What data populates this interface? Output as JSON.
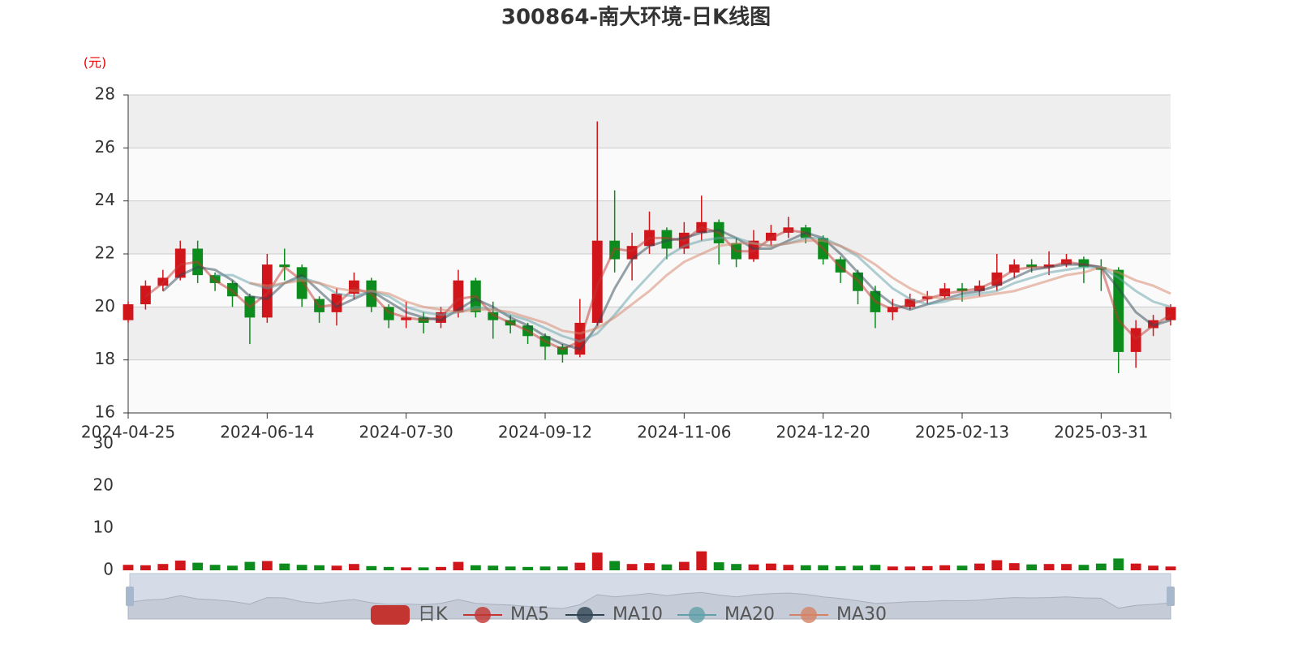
{
  "chart_data": {
    "type": "candlestick",
    "title": "300864-南大环境-日K线图",
    "y_label": "(元)",
    "categories": [
      "2024-04-25",
      null,
      null,
      null,
      null,
      null,
      null,
      null,
      "2024-06-14",
      null,
      null,
      null,
      null,
      null,
      null,
      null,
      "2024-07-30",
      null,
      null,
      null,
      null,
      null,
      null,
      null,
      "2024-09-12",
      null,
      null,
      null,
      null,
      null,
      null,
      null,
      "2024-11-06",
      null,
      null,
      null,
      null,
      null,
      null,
      null,
      "2024-12-20",
      null,
      null,
      null,
      null,
      null,
      null,
      null,
      "2025-02-13",
      null,
      null,
      null,
      null,
      null,
      null,
      null,
      "2025-03-31",
      null,
      null,
      null,
      null
    ],
    "ylim": [
      16,
      28
    ],
    "yticks": [
      16,
      18,
      20,
      22,
      24,
      26,
      28
    ],
    "up_color": "#d0151b",
    "down_color": "#0b8c1c",
    "series": [
      {
        "name": "日K",
        "type": "candlestick",
        "color": "#c23531",
        "open": [
          19.5,
          20.1,
          20.8,
          21.1,
          22.2,
          21.2,
          20.9,
          20.4,
          19.6,
          21.6,
          21.5,
          20.3,
          19.8,
          20.5,
          21.0,
          20.0,
          19.5,
          19.6,
          19.4,
          19.8,
          21.0,
          19.8,
          19.5,
          19.3,
          18.9,
          18.5,
          18.2,
          19.4,
          22.5,
          21.8,
          22.3,
          22.9,
          22.2,
          22.8,
          23.2,
          22.4,
          21.8,
          22.5,
          22.8,
          23.0,
          22.6,
          21.8,
          21.3,
          20.6,
          19.8,
          20.0,
          20.3,
          20.4,
          20.7,
          20.6,
          20.8,
          21.3,
          21.6,
          21.5,
          21.6,
          21.8,
          21.5,
          21.4,
          18.3,
          19.2,
          19.5
        ],
        "close": [
          20.1,
          20.8,
          21.1,
          22.2,
          21.2,
          20.9,
          20.4,
          19.6,
          21.6,
          21.5,
          20.3,
          19.8,
          20.5,
          21.0,
          20.0,
          19.5,
          19.6,
          19.4,
          19.8,
          21.0,
          19.8,
          19.5,
          19.3,
          18.9,
          18.5,
          18.2,
          19.4,
          22.5,
          21.8,
          22.3,
          22.9,
          22.2,
          22.8,
          23.2,
          22.4,
          21.8,
          22.5,
          22.8,
          23.0,
          22.6,
          21.8,
          21.3,
          20.6,
          19.8,
          20.0,
          20.3,
          20.4,
          20.7,
          20.6,
          20.8,
          21.3,
          21.6,
          21.5,
          21.6,
          21.8,
          21.5,
          21.4,
          18.3,
          19.2,
          19.5,
          20.0
        ],
        "low": [
          19.4,
          19.9,
          20.6,
          21.0,
          20.9,
          20.6,
          20.0,
          18.6,
          19.4,
          21.0,
          20.0,
          19.4,
          19.3,
          20.3,
          19.8,
          19.2,
          19.2,
          19.0,
          19.2,
          19.6,
          19.6,
          18.8,
          19.0,
          18.6,
          18.0,
          17.9,
          18.1,
          19.3,
          21.3,
          21.0,
          22.0,
          21.8,
          22.0,
          22.5,
          21.6,
          21.5,
          21.7,
          22.3,
          22.6,
          22.4,
          21.6,
          20.9,
          20.1,
          19.2,
          19.5,
          19.9,
          20.1,
          20.3,
          20.2,
          20.4,
          20.6,
          21.1,
          21.3,
          21.2,
          21.5,
          20.9,
          20.6,
          17.5,
          17.7,
          18.9,
          19.3
        ],
        "high": [
          20.2,
          21.0,
          21.4,
          22.5,
          22.5,
          21.3,
          21.0,
          20.5,
          22.0,
          22.2,
          21.6,
          20.4,
          20.7,
          21.3,
          21.1,
          20.1,
          20.2,
          19.8,
          20.0,
          21.4,
          21.1,
          20.2,
          19.7,
          19.4,
          19.0,
          18.6,
          20.3,
          27.0,
          24.4,
          22.8,
          23.6,
          23.0,
          23.2,
          24.2,
          23.3,
          22.6,
          22.9,
          23.1,
          23.4,
          23.1,
          22.7,
          21.9,
          21.4,
          20.8,
          20.3,
          20.5,
          20.6,
          20.9,
          20.9,
          21.0,
          22.0,
          21.8,
          21.8,
          22.1,
          22.0,
          21.9,
          21.8,
          21.5,
          19.5,
          19.7,
          20.1
        ]
      },
      {
        "name": "MA5",
        "color": "#c23531",
        "values": [
          null,
          20.4,
          20.9,
          21.6,
          21.7,
          21.0,
          20.6,
          20.0,
          20.5,
          21.5,
          21.0,
          20.0,
          20.1,
          20.7,
          20.5,
          19.8,
          19.6,
          19.5,
          19.6,
          20.3,
          20.4,
          19.7,
          19.4,
          19.1,
          18.7,
          18.4,
          18.7,
          20.8,
          22.2,
          22.1,
          22.6,
          22.6,
          22.5,
          23.0,
          22.8,
          22.1,
          22.1,
          22.6,
          22.9,
          22.8,
          22.2,
          21.5,
          21.0,
          20.2,
          19.9,
          20.1,
          20.3,
          20.5,
          20.6,
          20.7,
          21.0,
          21.4,
          21.5,
          21.5,
          21.7,
          21.6,
          21.5,
          19.5,
          18.8,
          19.3,
          19.7
        ]
      },
      {
        "name": "MA10",
        "color": "#2f4554",
        "values": [
          null,
          null,
          20.6,
          21.2,
          21.5,
          21.4,
          21.0,
          20.4,
          20.3,
          20.9,
          21.2,
          20.6,
          20.0,
          20.3,
          20.6,
          20.2,
          19.8,
          19.6,
          19.5,
          19.9,
          20.3,
          20.0,
          19.6,
          19.3,
          18.9,
          18.6,
          18.4,
          19.3,
          20.7,
          21.8,
          22.3,
          22.5,
          22.6,
          22.8,
          22.9,
          22.6,
          22.2,
          22.2,
          22.5,
          22.8,
          22.6,
          22.0,
          21.3,
          20.6,
          20.1,
          19.9,
          20.1,
          20.3,
          20.5,
          20.6,
          20.8,
          21.1,
          21.4,
          21.5,
          21.6,
          21.6,
          21.5,
          20.7,
          19.8,
          19.3,
          19.5
        ]
      },
      {
        "name": "MA20",
        "color": "#61a0a8",
        "values": [
          null,
          null,
          null,
          null,
          null,
          21.2,
          21.2,
          20.9,
          20.7,
          20.9,
          21.1,
          20.9,
          20.5,
          20.4,
          20.6,
          20.4,
          20.0,
          19.8,
          19.7,
          19.8,
          20.0,
          19.9,
          19.7,
          19.5,
          19.2,
          18.9,
          18.7,
          19.0,
          19.7,
          20.5,
          21.2,
          21.9,
          22.3,
          22.5,
          22.6,
          22.6,
          22.4,
          22.3,
          22.4,
          22.6,
          22.6,
          22.3,
          21.9,
          21.3,
          20.7,
          20.3,
          20.1,
          20.2,
          20.4,
          20.5,
          20.6,
          20.9,
          21.1,
          21.3,
          21.4,
          21.5,
          21.5,
          21.1,
          20.6,
          20.2,
          20.0
        ]
      },
      {
        "name": "MA30",
        "color": "#d48265",
        "values": [
          null,
          null,
          null,
          null,
          null,
          null,
          null,
          20.9,
          20.8,
          20.9,
          21.0,
          20.9,
          20.7,
          20.6,
          20.6,
          20.5,
          20.2,
          20.0,
          19.9,
          19.8,
          19.9,
          19.9,
          19.8,
          19.6,
          19.4,
          19.1,
          19.0,
          19.2,
          19.6,
          20.1,
          20.6,
          21.2,
          21.7,
          22.0,
          22.3,
          22.4,
          22.4,
          22.3,
          22.4,
          22.5,
          22.5,
          22.3,
          22.0,
          21.6,
          21.1,
          20.7,
          20.4,
          20.3,
          20.3,
          20.4,
          20.5,
          20.6,
          20.8,
          21.0,
          21.2,
          21.3,
          21.5,
          21.3,
          21.0,
          20.8,
          20.5
        ]
      }
    ],
    "volume": {
      "ylim": [
        0,
        30
      ],
      "yticks": [
        0,
        10,
        20,
        30
      ],
      "values": [
        1.3,
        1.2,
        1.5,
        2.3,
        1.8,
        1.3,
        1.1,
        2.0,
        2.2,
        1.6,
        1.3,
        1.2,
        1.1,
        1.5,
        1.0,
        0.8,
        0.7,
        0.7,
        0.8,
        2.0,
        1.2,
        1.1,
        0.9,
        0.8,
        0.9,
        0.9,
        1.8,
        4.2,
        2.2,
        1.5,
        1.7,
        1.4,
        2.0,
        4.5,
        1.9,
        1.5,
        1.4,
        1.6,
        1.3,
        1.2,
        1.2,
        1.0,
        1.1,
        1.3,
        0.9,
        0.9,
        1.0,
        1.2,
        1.1,
        1.6,
        2.4,
        1.7,
        1.4,
        1.5,
        1.5,
        1.3,
        1.6,
        2.8,
        1.6,
        1.1,
        0.9
      ]
    }
  }
}
